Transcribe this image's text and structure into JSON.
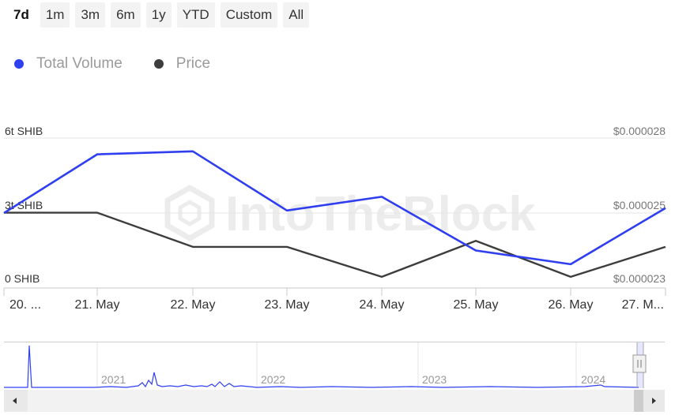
{
  "range_buttons": [
    "7d",
    "1m",
    "3m",
    "6m",
    "1y",
    "YTD",
    "Custom",
    "All"
  ],
  "active_range": "7d",
  "colors": {
    "volume": "#2f3ff0",
    "price": "#3d3d3d",
    "grid": "#e6e6e6",
    "axis_text": "#333333",
    "right_axis_text": "#777777",
    "navigator": "#2f3ff0"
  },
  "chart_data": {
    "type": "line",
    "categories": [
      "20. ...",
      "21. May",
      "22. May",
      "23. May",
      "24. May",
      "25. May",
      "26. May",
      "27. M..."
    ],
    "series": [
      {
        "name": "Total Volume",
        "axis": "left",
        "values": [
          3.0,
          5.35,
          5.47,
          3.1,
          3.65,
          1.5,
          0.95,
          3.2
        ]
      },
      {
        "name": "Price",
        "axis": "right",
        "values": [
          2.551e-05,
          2.551e-05,
          2.437e-05,
          2.437e-05,
          2.337e-05,
          2.457e-05,
          2.337e-05,
          2.437e-05
        ]
      }
    ],
    "left_axis": {
      "ticks": [
        "0 SHIB",
        "3t SHIB",
        "6t SHIB"
      ],
      "ylim": [
        0,
        6
      ]
    },
    "right_axis": {
      "ticks": [
        "$0.000023",
        "$0.000025",
        "$0.000028"
      ],
      "ylim": [
        2.3e-05,
        2.8e-05
      ]
    },
    "watermark": "IntoTheBlock",
    "navigator": {
      "years": [
        "2021",
        "2022",
        "2023",
        "2024"
      ]
    }
  }
}
